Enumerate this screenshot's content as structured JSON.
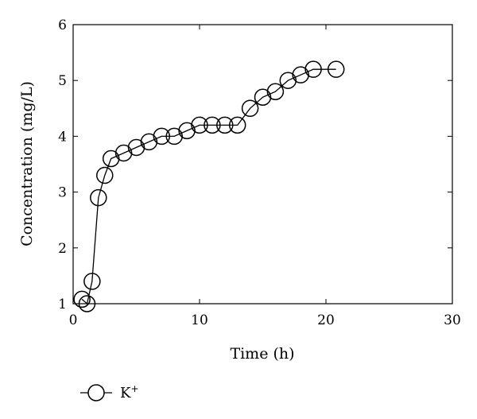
{
  "chart_data": {
    "type": "line",
    "xlabel": "Time (h)",
    "ylabel": "Concentration (mg/L)",
    "xlim": [
      0,
      30
    ],
    "ylim": [
      1,
      6
    ],
    "xticks": [
      0,
      10,
      20,
      30
    ],
    "yticks": [
      1,
      2,
      3,
      4,
      5,
      6
    ],
    "grid": false,
    "legend_position": "bottom-left",
    "series": [
      {
        "name": "K",
        "name_superscript": "+",
        "marker": "open-circle",
        "color": "#000000",
        "x": [
          0.7,
          1.1,
          1.5,
          2.0,
          2.5,
          3.0,
          4.0,
          5.0,
          6.0,
          7.0,
          8.0,
          9.0,
          10.0,
          11.0,
          12.0,
          13.0,
          14.0,
          15.0,
          16.0,
          17.0,
          18.0,
          19.0,
          20.8
        ],
        "y": [
          1.08,
          1.0,
          1.4,
          2.9,
          3.3,
          3.6,
          3.7,
          3.8,
          3.9,
          4.0,
          4.0,
          4.1,
          4.2,
          4.2,
          4.2,
          4.2,
          4.5,
          4.7,
          4.8,
          5.0,
          5.1,
          5.2,
          5.2
        ]
      }
    ]
  }
}
